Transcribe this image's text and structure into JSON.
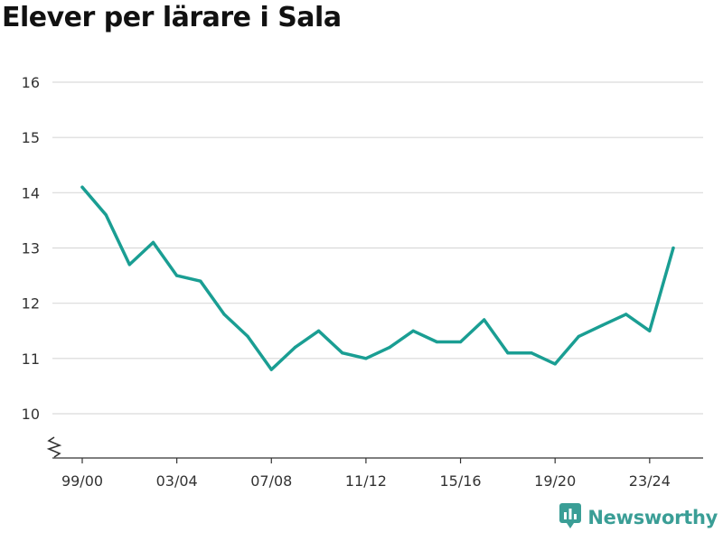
{
  "chart_data": {
    "type": "line",
    "title": "Elever per lärare i Sala",
    "xlabel": "",
    "ylabel": "",
    "categories": [
      "99/00",
      "00/01",
      "01/02",
      "02/03",
      "03/04",
      "04/05",
      "05/06",
      "06/07",
      "07/08",
      "08/09",
      "09/10",
      "10/11",
      "11/12",
      "12/13",
      "13/14",
      "14/15",
      "15/16",
      "16/17",
      "17/18",
      "18/19",
      "19/20",
      "20/21",
      "21/22",
      "22/23",
      "23/24",
      "24/25"
    ],
    "x_tick_labels": [
      "99/00",
      "03/04",
      "07/08",
      "11/12",
      "15/16",
      "19/20",
      "23/24"
    ],
    "y_ticks": [
      10,
      11,
      12,
      13,
      14,
      15,
      16
    ],
    "ylim": [
      9.3,
      16.3
    ],
    "y_axis_broken": true,
    "grid": "horizontal",
    "series": [
      {
        "values": [
          14.1,
          13.6,
          12.7,
          13.1,
          12.5,
          12.4,
          11.8,
          11.4,
          10.8,
          11.2,
          11.5,
          11.1,
          11.0,
          11.2,
          11.5,
          11.3,
          11.3,
          11.7,
          11.1,
          11.1,
          10.9,
          11.4,
          11.6,
          11.8,
          11.5,
          13.0
        ],
        "color": "#1a9e93"
      }
    ]
  },
  "brand": {
    "name": "Newsworthy",
    "logo_icon": "newsworthy-logo-icon",
    "color": "#3a9e96"
  }
}
